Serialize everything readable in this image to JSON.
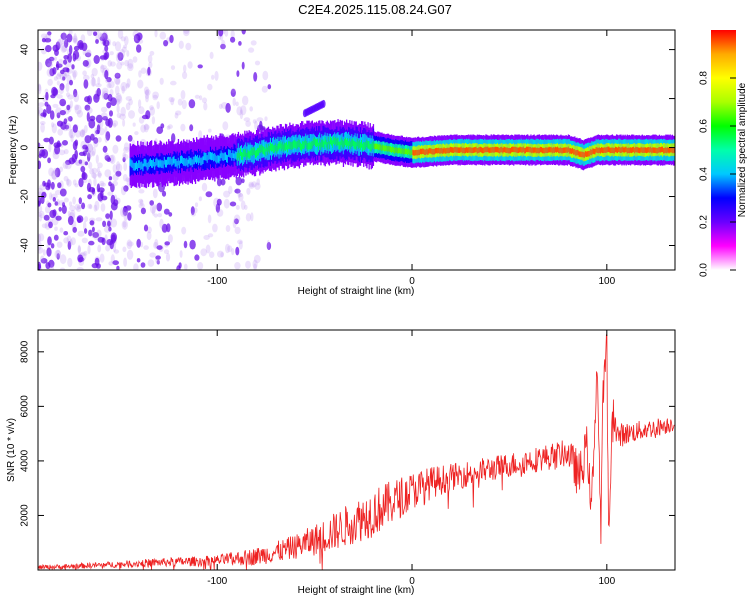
{
  "title": "C2E4.2025.115.08.24.G07",
  "chart_data": [
    {
      "type": "heatmap",
      "xlabel": "Height of straight line (km)",
      "ylabel": "Frequency (Hz)",
      "xlim": [
        -192,
        135
      ],
      "ylim": [
        -50,
        48
      ],
      "x_ticks": [
        -100,
        0,
        100
      ],
      "y_ticks": [
        -40,
        -20,
        0,
        20,
        40
      ],
      "colorbar": {
        "label": "Normalized spectral amplitude",
        "range": [
          0,
          1
        ],
        "ticks": [
          0.0,
          0.2,
          0.4,
          0.6,
          0.8
        ],
        "colors": [
          "#ffffff",
          "#ff00ff",
          "#6a00ff",
          "#0000ff",
          "#00c8ff",
          "#00ffaa",
          "#00ff00",
          "#aaff00",
          "#ffff00",
          "#ffaa00",
          "#ff0000"
        ]
      },
      "ridge_frequency_hz": [
        [
          -140,
          -7
        ],
        [
          -120,
          -6
        ],
        [
          -100,
          -4
        ],
        [
          -80,
          -2
        ],
        [
          -70,
          0
        ],
        [
          -60,
          1
        ],
        [
          -50,
          1.5
        ],
        [
          -40,
          2
        ],
        [
          -30,
          1.5
        ],
        [
          -20,
          0.5
        ],
        [
          -10,
          -1
        ],
        [
          0,
          -2
        ],
        [
          20,
          -1
        ],
        [
          50,
          -1
        ],
        [
          80,
          -1
        ],
        [
          88,
          -3
        ],
        [
          95,
          -1
        ],
        [
          110,
          -1
        ],
        [
          135,
          -1
        ]
      ],
      "secondary_feature": {
        "x": [
          -55,
          -45
        ],
        "y": [
          14,
          18
        ]
      },
      "noise_region_x": [
        -192,
        -88
      ],
      "grid": false
    },
    {
      "type": "line",
      "xlabel": "Height of straight line (km)",
      "ylabel": "SNR (10 * v/v)",
      "xlim": [
        -192,
        135
      ],
      "ylim": [
        0,
        8800
      ],
      "x_ticks": [
        -100,
        0,
        100
      ],
      "y_ticks": [
        2000,
        4000,
        6000,
        8000
      ],
      "series": [
        {
          "color": "#ee2222",
          "x": [
            -192,
            -180,
            -170,
            -160,
            -150,
            -140,
            -130,
            -120,
            -110,
            -100,
            -90,
            -80,
            -70,
            -60,
            -50,
            -40,
            -30,
            -20,
            -10,
            0,
            10,
            20,
            30,
            40,
            50,
            60,
            70,
            80,
            86,
            90,
            92,
            95,
            97,
            98,
            100,
            101,
            103,
            105,
            110,
            120,
            130,
            135
          ],
          "values": [
            100,
            120,
            150,
            180,
            210,
            250,
            280,
            300,
            320,
            350,
            420,
            500,
            650,
            850,
            1100,
            1400,
            1750,
            2100,
            2500,
            2900,
            3200,
            3400,
            3550,
            3700,
            3850,
            4000,
            4150,
            4300,
            3400,
            4600,
            2000,
            7600,
            1200,
            6400,
            8400,
            1000,
            6200,
            4900,
            5000,
            5150,
            5300,
            5400
          ]
        }
      ],
      "noise_amplitude": [
        [
          -192,
          80
        ],
        [
          -150,
          120
        ],
        [
          -100,
          200
        ],
        [
          -60,
          450
        ],
        [
          -40,
          700
        ],
        [
          -20,
          900
        ],
        [
          0,
          700
        ],
        [
          20,
          500
        ],
        [
          50,
          450
        ],
        [
          80,
          500
        ],
        [
          85,
          900
        ],
        [
          110,
          400
        ],
        [
          135,
          300
        ]
      ],
      "grid": false
    }
  ]
}
